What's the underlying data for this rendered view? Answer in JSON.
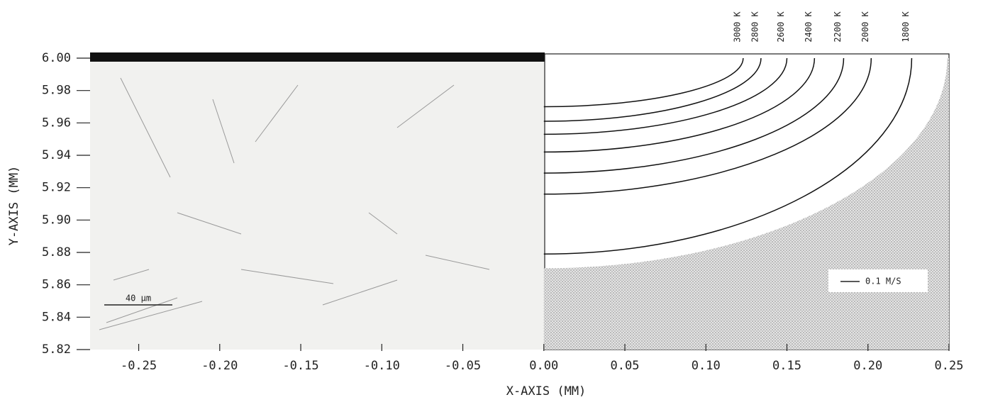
{
  "chart_data": {
    "type": "isotherm",
    "x_label": "X-AXIS (MM)",
    "y_label": "Y-AXIS (MM)",
    "xlim": [
      -0.28,
      0.25
    ],
    "ylim": [
      5.82,
      6.0
    ],
    "xticks": [
      -0.25,
      {
        "value": -0.2,
        "label": "-0.20"
      },
      -0.15,
      {
        "value": -0.1,
        "label": "-0.10"
      },
      -0.05,
      {
        "value": 0,
        "label": "0.00"
      },
      0.05,
      {
        "value": 0.1,
        "label": "0.10"
      },
      0.15,
      {
        "value": 0.2,
        "label": "0.20"
      },
      0.25
    ],
    "yticks": [
      {
        "value": 6.0,
        "label": "6.00"
      },
      5.98,
      5.96,
      5.94,
      5.92,
      {
        "value": 5.9,
        "label": "5.90"
      },
      5.88,
      5.86,
      5.84,
      5.82
    ],
    "isotherms": [
      {
        "label": "3000 K",
        "value": 3000,
        "x_surface": 0.123,
        "y_edge": 5.97
      },
      {
        "label": "2800 K",
        "value": 2800,
        "x_surface": 0.134,
        "y_edge": 5.961
      },
      {
        "label": "2600 K",
        "value": 2600,
        "x_surface": 0.15,
        "y_edge": 5.953
      },
      {
        "label": "2400 K",
        "value": 2400,
        "x_surface": 0.167,
        "y_edge": 5.942
      },
      {
        "label": "2200 K",
        "value": 2200,
        "x_surface": 0.185,
        "y_edge": 5.929
      },
      {
        "label": "2000 K",
        "value": 2000,
        "x_surface": 0.202,
        "y_edge": 5.916
      },
      {
        "label": "1800 K",
        "value": 1800,
        "x_surface": 0.227,
        "y_edge": 5.879
      }
    ],
    "scale_bar_label": "40 μm",
    "velocity_key_label": "0.1 M/S"
  }
}
